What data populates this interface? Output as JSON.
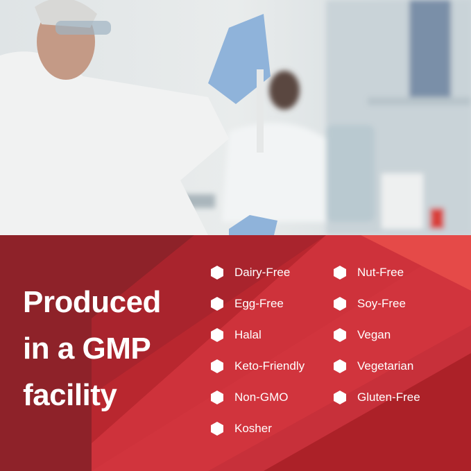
{
  "headline": {
    "lines": [
      "Produced",
      "in a GMP",
      "facility"
    ]
  },
  "features": {
    "left": [
      "Dairy-Free",
      "Egg-Free",
      "Halal",
      "Keto-Friendly",
      "Non-GMO",
      "Kosher"
    ],
    "right": [
      "Nut-Free",
      "Soy-Free",
      "Vegan",
      "Vegetarian",
      "Gluten-Free"
    ]
  },
  "icons": {
    "bullet": "hexagon-icon"
  },
  "colors": {
    "dark_red": "#8e2229",
    "mid_red": "#b9272f",
    "light_red": "#e1403f",
    "text": "#ffffff"
  }
}
